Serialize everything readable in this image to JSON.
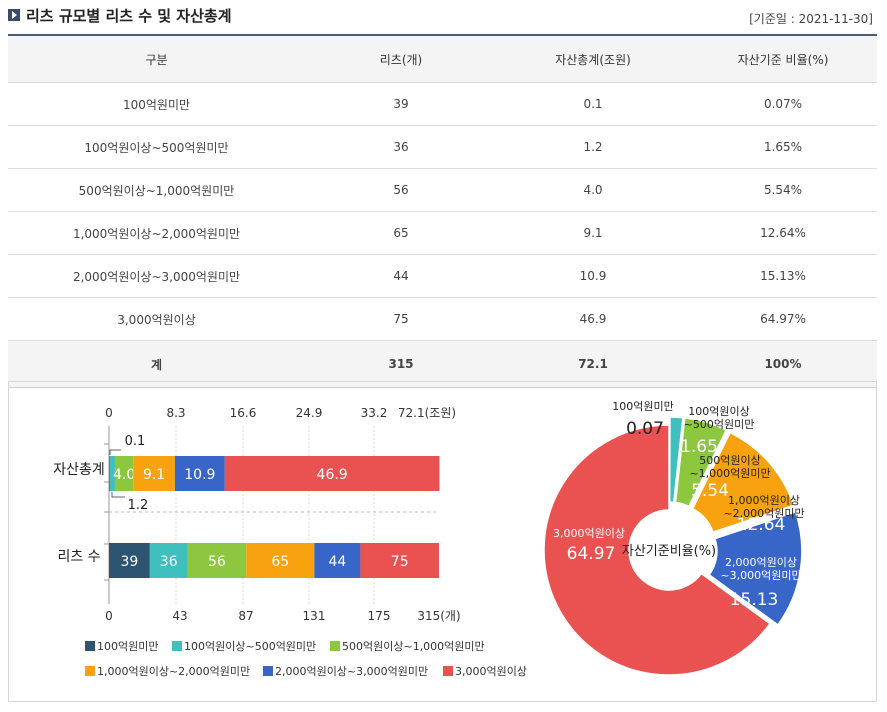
{
  "header": {
    "title": "리츠 규모별 리츠 수 및 자산총계",
    "date": "[기준일 : 2021-11-30]"
  },
  "table": {
    "columns": [
      "구분",
      "리츠(개)",
      "자산총계(조원)",
      "자산기준 비율(%)"
    ],
    "rows": [
      [
        "100억원미만",
        "39",
        "0.1",
        "0.07%"
      ],
      [
        "100억원이상~500억원미만",
        "36",
        "1.2",
        "1.65%"
      ],
      [
        "500억원이상~1,000억원미만",
        "56",
        "4.0",
        "5.54%"
      ],
      [
        "1,000억원이상~2,000억원미만",
        "65",
        "9.1",
        "12.64%"
      ],
      [
        "2,000억원이상~3,000억원미만",
        "44",
        "10.9",
        "15.13%"
      ],
      [
        "3,000억원이상",
        "75",
        "46.9",
        "64.97%"
      ]
    ],
    "total": [
      "계",
      "315",
      "72.1",
      "100%"
    ]
  },
  "chart_data": [
    {
      "type": "bar",
      "orientation": "horizontal",
      "stacked": true,
      "categories": [
        "자산총계",
        "리츠 수"
      ],
      "series": [
        {
          "name": "100억원미만",
          "color": "#2d5470",
          "values": [
            0.1,
            39
          ]
        },
        {
          "name": "100억원이상~500억원미만",
          "color": "#40bfbf",
          "values": [
            1.2,
            36
          ]
        },
        {
          "name": "500억원이상~1,000억원미만",
          "color": "#8dc63f",
          "values": [
            4.0,
            56
          ]
        },
        {
          "name": "1,000억원이상~2,000억원미만",
          "color": "#f7a20e",
          "values": [
            9.1,
            65
          ]
        },
        {
          "name": "2,000억원이상~3,000억원미만",
          "color": "#3766c8",
          "values": [
            10.9,
            44
          ]
        },
        {
          "name": "3,000억원이상",
          "color": "#ea5252",
          "values": [
            46.9,
            75
          ]
        }
      ],
      "top_axis": {
        "ticks": [
          "0",
          "8.3",
          "16.6",
          "24.9",
          "33.2",
          "72.1(조원)"
        ],
        "max": 72.1
      },
      "bottom_axis": {
        "ticks": [
          "0",
          "43",
          "87",
          "131",
          "175",
          "315(개)"
        ],
        "max": 315
      },
      "annotations": [
        "0.1",
        "1.2"
      ],
      "legend_position": "bottom"
    },
    {
      "type": "pie",
      "variant": "donut",
      "center_label": "자산기준비율(%)",
      "slices": [
        {
          "label": "100억원미만",
          "value": 0.07,
          "value_label": "0.07",
          "color": "#2d5470"
        },
        {
          "label": "100억원이상\n~500억원미만",
          "value": 1.65,
          "value_label": "1.65",
          "color": "#40bfbf"
        },
        {
          "label": "500억원이상\n~1,000억원미만",
          "value": 5.54,
          "value_label": "5.54",
          "color": "#8dc63f"
        },
        {
          "label": "1,000억원이상\n~2,000억원미만",
          "value": 12.64,
          "value_label": "12.64",
          "color": "#f7a20e"
        },
        {
          "label": "2,000억원이상\n~3,000억원미만",
          "value": 15.13,
          "value_label": "15.13",
          "color": "#3766c8"
        },
        {
          "label": "3,000억원이상",
          "value": 64.97,
          "value_label": "64.97",
          "color": "#ea5252"
        }
      ]
    }
  ]
}
